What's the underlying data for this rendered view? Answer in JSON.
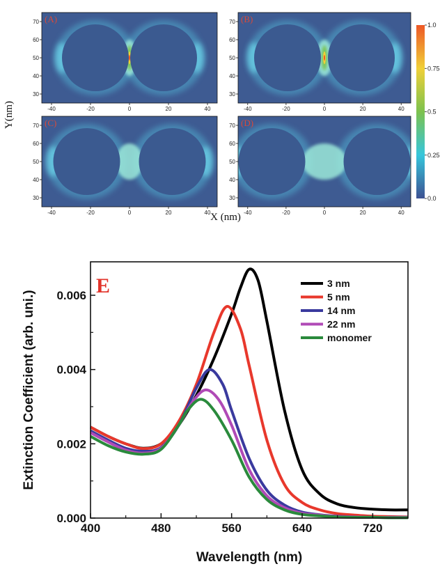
{
  "chart_data": [
    {
      "type": "heatmap",
      "panels": [
        {
          "label": "(A)",
          "gap_nm": 3,
          "hotspot_intensity": 1.0
        },
        {
          "label": "(B)",
          "gap_nm": 5,
          "hotspot_intensity": 0.6
        },
        {
          "label": "(C)",
          "gap_nm": 14,
          "hotspot_intensity": 0.4
        },
        {
          "label": "(D)",
          "gap_nm": 22,
          "hotspot_intensity": 0.3
        }
      ],
      "xlabel": "X (nm)",
      "ylabel": "Y(nm)",
      "xlim": [
        -45,
        45
      ],
      "ylim": [
        25,
        75
      ],
      "xticks": [
        "-40",
        "-20",
        "0",
        "20",
        "40"
      ],
      "yticks": [
        "30",
        "40",
        "50",
        "60",
        "70"
      ],
      "colorbar": {
        "ticks": [
          "0.0",
          "0.25",
          "0.5",
          "0.75",
          "1.0"
        ],
        "values": [
          0,
          0.25,
          0.5,
          0.75,
          1.0
        ],
        "colors": [
          "#3d5192",
          "#36c6dc",
          "#7cc24e",
          "#f0d038",
          "#ee5826"
        ]
      }
    },
    {
      "type": "line",
      "panel_label": "E",
      "xlabel": "Wavelength (nm)",
      "ylabel": "Extinction Coefficient (arb. uni.)",
      "xlim": [
        400,
        760
      ],
      "ylim": [
        0,
        0.0069
      ],
      "xticks": [
        "400",
        "480",
        "560",
        "640",
        "720"
      ],
      "yticks": [
        "0.000",
        "0.002",
        "0.004",
        "0.006"
      ],
      "series": [
        {
          "name": "3 nm",
          "color": "#000000",
          "x": [
            400,
            420,
            440,
            460,
            480,
            500,
            520,
            540,
            560,
            570,
            580,
            590,
            600,
            620,
            640,
            660,
            680,
            700,
            720,
            740,
            760
          ],
          "y": [
            0.00245,
            0.0022,
            0.002,
            0.00188,
            0.002,
            0.0025,
            0.0033,
            0.0043,
            0.0055,
            0.0062,
            0.0067,
            0.0064,
            0.0053,
            0.0029,
            0.0013,
            0.00065,
            0.00038,
            0.00028,
            0.00024,
            0.00022,
            0.00022
          ]
        },
        {
          "name": "5 nm",
          "color": "#e8382c",
          "x": [
            400,
            420,
            440,
            460,
            480,
            500,
            520,
            540,
            555,
            570,
            580,
            600,
            620,
            640,
            660,
            680,
            700,
            720,
            740,
            760
          ],
          "y": [
            0.00245,
            0.0022,
            0.002,
            0.00187,
            0.002,
            0.0026,
            0.0036,
            0.005,
            0.0057,
            0.0051,
            0.0041,
            0.0021,
            0.0009,
            0.00042,
            0.00022,
            0.00012,
            8e-05,
            5e-05,
            4e-05,
            3e-05
          ]
        },
        {
          "name": "14 nm",
          "color": "#3a3a9e",
          "x": [
            400,
            420,
            440,
            460,
            480,
            500,
            520,
            535,
            550,
            560,
            580,
            600,
            620,
            640,
            660,
            680,
            700,
            720,
            740,
            760
          ],
          "y": [
            0.00235,
            0.0021,
            0.00188,
            0.0018,
            0.0019,
            0.0025,
            0.0035,
            0.004,
            0.0036,
            0.0029,
            0.0016,
            0.00075,
            0.00035,
            0.00016,
            9e-05,
            5e-05,
            3e-05,
            2e-05,
            2e-05,
            2e-05
          ]
        },
        {
          "name": "22 nm",
          "color": "#b04ab6",
          "x": [
            400,
            420,
            440,
            460,
            480,
            500,
            515,
            530,
            545,
            560,
            580,
            600,
            620,
            640,
            660,
            680,
            700,
            720,
            740,
            760
          ],
          "y": [
            0.0023,
            0.00205,
            0.00183,
            0.00175,
            0.00188,
            0.0025,
            0.0031,
            0.00345,
            0.0032,
            0.0025,
            0.0013,
            0.0006,
            0.00028,
            0.00013,
            8e-05,
            4e-05,
            3e-05,
            2e-05,
            2e-05,
            2e-05
          ]
        },
        {
          "name": "monomer",
          "color": "#2a8a3c",
          "x": [
            400,
            420,
            440,
            460,
            480,
            500,
            510,
            525,
            540,
            560,
            580,
            600,
            620,
            640,
            660,
            680,
            700,
            720,
            740,
            760
          ],
          "y": [
            0.0022,
            0.00195,
            0.00178,
            0.00172,
            0.00185,
            0.0025,
            0.0029,
            0.0032,
            0.0029,
            0.0021,
            0.0011,
            0.0005,
            0.00022,
            0.0001,
            6e-05,
            3e-05,
            2e-05,
            2e-05,
            1e-05,
            1e-05
          ]
        }
      ],
      "legend_position": "top-right"
    }
  ]
}
